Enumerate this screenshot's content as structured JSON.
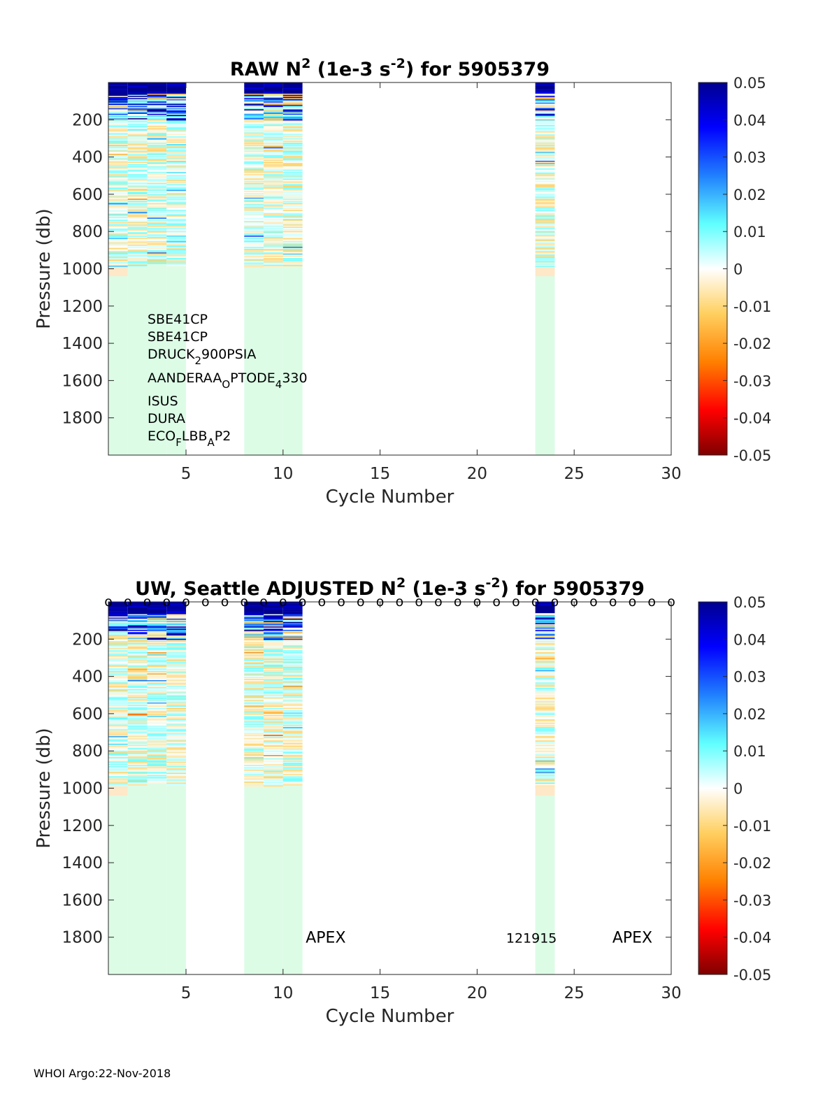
{
  "footer": "WHOI Argo:22-Nov-2018",
  "colorbar": {
    "ticks": [
      "0.05",
      "0.04",
      "0.03",
      "0.02",
      "0.01",
      "0",
      "-0.01",
      "-0.02",
      "-0.03",
      "-0.04",
      "-0.05"
    ],
    "range": [
      -0.05,
      0.05
    ],
    "colormap": "jet-like diverging (dark red to white to dark blue)"
  },
  "chart_data": [
    {
      "type": "heatmap",
      "title": "RAW N² (1e-3 s⁻²) for 5905379",
      "title_parts": {
        "pre": "RAW N",
        "sup1": "2",
        "mid": " (1e-3 s",
        "sup2": "-2",
        "post": ") for 5905379"
      },
      "xlabel": "Cycle Number",
      "ylabel": "Pressure (db)",
      "xlim": [
        1,
        30
      ],
      "ylim": [
        2000,
        0
      ],
      "xticks": [
        "5",
        "10",
        "15",
        "20",
        "25",
        "30"
      ],
      "yticks": [
        "200",
        "400",
        "600",
        "800",
        "1000",
        "1200",
        "1400",
        "1600",
        "1800"
      ],
      "clim": [
        -0.05,
        0.05
      ],
      "profiles": [
        {
          "cycle": 1,
          "max_pressure": 1000
        },
        {
          "cycle": 2,
          "max_pressure": 980
        },
        {
          "cycle": 3,
          "max_pressure": 970
        },
        {
          "cycle": 4,
          "max_pressure": 980
        },
        {
          "cycle": 8,
          "max_pressure": 990
        },
        {
          "cycle": 9,
          "max_pressure": 985
        },
        {
          "cycle": 10,
          "max_pressure": 980
        },
        {
          "cycle": 23,
          "max_pressure": 1000
        }
      ],
      "sensors": [
        {
          "base": "SBE41CP",
          "sub": "",
          "rest": ""
        },
        {
          "base": "SBE41CP",
          "sub": "",
          "rest": ""
        },
        {
          "base": "DRUCK",
          "sub": "2",
          "rest": "900PSIA"
        },
        {
          "base": "AANDERAA",
          "sub": "O",
          "rest": "PTODE",
          "sub2": "4",
          "rest2": "330"
        },
        {
          "base": "ISUS",
          "sub": "",
          "rest": ""
        },
        {
          "base": "DURA",
          "sub": "",
          "rest": ""
        },
        {
          "base": "ECO",
          "sub": "F",
          "rest": "LBB",
          "sub2": "A",
          "rest2": "P2"
        }
      ]
    },
    {
      "type": "heatmap",
      "title": "UW, Seattle  ADJUSTED N² (1e-3 s⁻²) for 5905379",
      "title_parts": {
        "pre": "UW, Seattle  ADJUSTED N",
        "sup1": "2",
        "mid": " (1e-3 s",
        "sup2": "-2",
        "post": ") for 5905379"
      },
      "xlabel": "Cycle Number",
      "ylabel": "Pressure (db)",
      "xlim": [
        1,
        30
      ],
      "ylim": [
        2000,
        0
      ],
      "xticks": [
        "5",
        "10",
        "15",
        "20",
        "25",
        "30"
      ],
      "yticks": [
        "200",
        "400",
        "600",
        "800",
        "1000",
        "1200",
        "1400",
        "1600",
        "1800"
      ],
      "clim": [
        -0.05,
        0.05
      ],
      "profiles": [
        {
          "cycle": 1,
          "max_pressure": 1000
        },
        {
          "cycle": 2,
          "max_pressure": 980
        },
        {
          "cycle": 3,
          "max_pressure": 970
        },
        {
          "cycle": 4,
          "max_pressure": 980
        },
        {
          "cycle": 8,
          "max_pressure": 990
        },
        {
          "cycle": 9,
          "max_pressure": 985
        },
        {
          "cycle": 10,
          "max_pressure": 980
        },
        {
          "cycle": 23,
          "max_pressure": 1000
        }
      ],
      "qc_marker": "o",
      "qc_cycles": [
        1,
        2,
        3,
        4,
        5,
        6,
        7,
        8,
        9,
        10,
        11,
        12,
        13,
        14,
        15,
        16,
        17,
        18,
        19,
        20,
        21,
        22,
        23,
        24,
        25,
        26,
        27,
        28,
        29,
        30
      ],
      "annotations": [
        {
          "text": "APEX",
          "x": 12.2,
          "y": 1800
        },
        {
          "text": "121915",
          "x": 22.8,
          "y": 1800
        },
        {
          "text": "APEX",
          "x": 28.0,
          "y": 1800
        }
      ]
    }
  ]
}
